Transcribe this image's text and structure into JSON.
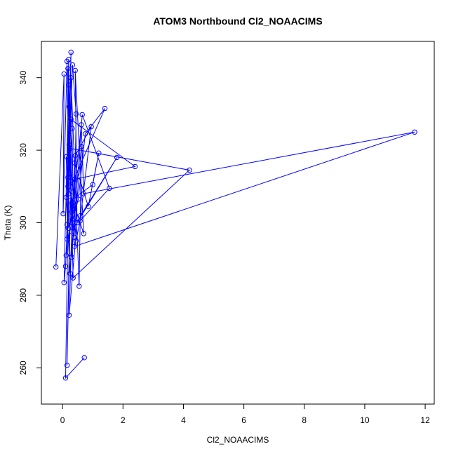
{
  "chart_data": {
    "type": "line",
    "title": "ATOM3 Northbound Cl2_NOAACIMS",
    "xlabel": "Cl2_NOAACIMS",
    "ylabel": "Theta (K)",
    "xlim": [
      -0.7,
      12.3
    ],
    "ylim": [
      250,
      350
    ],
    "x_ticks": [
      0,
      2,
      4,
      6,
      8,
      10,
      12
    ],
    "y_ticks": [
      260,
      280,
      300,
      320,
      340
    ],
    "x_tick_labels": [
      "0",
      "2",
      "4",
      "6",
      "8",
      "10",
      "12"
    ],
    "y_tick_labels": [
      "260",
      "280",
      "300",
      "320",
      "340"
    ],
    "grid": false,
    "legend": "none",
    "color": "#0000ff",
    "series": [
      {
        "name": "",
        "x": [
          -0.22,
          0.05,
          0.02,
          0.15,
          0.21,
          0.12,
          0.19,
          0.28,
          0.18,
          0.33,
          0.45,
          0.38,
          0.62,
          0.55,
          0.28,
          0.35,
          0.22,
          0.48,
          0.42,
          0.7,
          0.18,
          0.32,
          0.15,
          0.25,
          1.0,
          1.2,
          0.85,
          0.4,
          0.3,
          0.65,
          1.55,
          0.58,
          0.45,
          0.25,
          4.2,
          0.35,
          0.22,
          0.15,
          0.1,
          0.05,
          0.2,
          0.3,
          0.4,
          2.4,
          0.28,
          0.12,
          0.35,
          0.62,
          0.7,
          11.65,
          0.4,
          0.25,
          0.18,
          0.32,
          0.52,
          0.75,
          1.4,
          0.12,
          0.25,
          0.42,
          0.95,
          0.6,
          1.8,
          0.3,
          0.2,
          0.15,
          0.22,
          0.1,
          0.72
        ],
        "y": [
          287.8,
          341.0,
          302.5,
          344.5,
          308.0,
          318.2,
          298.5,
          347.0,
          312.5,
          343.5,
          330.0,
          296.0,
          321.0,
          282.5,
          340.0,
          308.5,
          274.5,
          300.0,
          342.0,
          297.0,
          310.0,
          326.0,
          260.7,
          306.0,
          310.5,
          319.2,
          304.5,
          316.5,
          290.5,
          329.8,
          309.5,
          300.5,
          295.0,
          320.5,
          314.5,
          284.8,
          332.0,
          299.5,
          288.0,
          283.5,
          338.0,
          303.0,
          312.0,
          315.5,
          328.5,
          291.0,
          305.5,
          327.0,
          308.0,
          325.0,
          293.5,
          311.5,
          342.5,
          300.0,
          306.5,
          324.5,
          331.5,
          307.0,
          286.0,
          318.5,
          326.5,
          302.0,
          318.0,
          297.5,
          345.0,
          295.5,
          321.5,
          257.2,
          262.8
        ]
      }
    ]
  }
}
